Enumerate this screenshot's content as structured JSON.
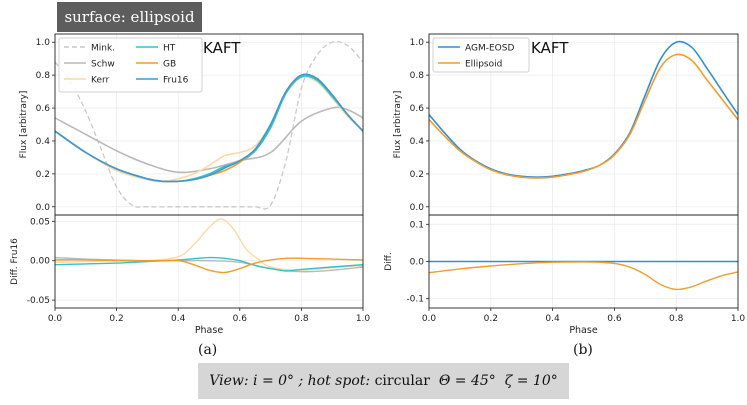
{
  "header": {
    "badge": "surface: ellipsoid"
  },
  "footer": {
    "view_label": "View:",
    "inclination": "i = 0°",
    "sep": ";",
    "hotspot_label": "hot spot:",
    "shape": "circular",
    "theta": "Θ = 45°",
    "zeta": "ζ = 10°"
  },
  "colors": {
    "mink": "#c8c8c8",
    "schw": "#b9b9b9",
    "kerr": "#fcd9a4",
    "ht": "#2ec4cf",
    "gb": "#f39c2c",
    "fru16": "#3a9ad9",
    "agm": "#2f8fd8",
    "ellipsoid": "#f39c2c"
  },
  "chart_data": [
    {
      "panel": "(a)",
      "type": "line",
      "annotation": "KAFT",
      "xlabel": "Phase",
      "xlim": [
        0,
        1
      ],
      "xticks": [
        "0.0",
        "0.2",
        "0.4",
        "0.6",
        "0.8",
        "1.0"
      ],
      "top": {
        "ylabel": "Flux [arbitrary]",
        "ylim": [
          -0.05,
          1.05
        ],
        "yticks": [
          "0.0",
          "0.2",
          "0.4",
          "0.6",
          "0.8",
          "1.0"
        ],
        "series": [
          {
            "name": "Mink.",
            "color_key": "mink",
            "dashed": true,
            "x": [
              0,
              0.05,
              0.1,
              0.15,
              0.2,
              0.25,
              0.3,
              0.4,
              0.5,
              0.6,
              0.65,
              0.7,
              0.75,
              0.8,
              0.85,
              0.9,
              0.95,
              1.0
            ],
            "y": [
              0.88,
              0.76,
              0.58,
              0.35,
              0.12,
              0.01,
              0,
              0,
              0,
              0,
              0,
              0.01,
              0.28,
              0.72,
              0.92,
              1.0,
              0.98,
              0.88
            ]
          },
          {
            "name": "Schw",
            "color_key": "schw",
            "dashed": false,
            "x": [
              0,
              0.1,
              0.2,
              0.3,
              0.4,
              0.5,
              0.6,
              0.7,
              0.8,
              0.9,
              0.95,
              1.0
            ],
            "y": [
              0.54,
              0.44,
              0.34,
              0.26,
              0.21,
              0.23,
              0.28,
              0.33,
              0.52,
              0.6,
              0.59,
              0.54
            ]
          },
          {
            "name": "Kerr",
            "color_key": "kerr",
            "dashed": false,
            "x": [
              0,
              0.1,
              0.2,
              0.3,
              0.35,
              0.4,
              0.45,
              0.5,
              0.55,
              0.6,
              0.65,
              0.7,
              0.75,
              0.8,
              0.85,
              0.9,
              0.95,
              1.0
            ],
            "y": [
              0.46,
              0.33,
              0.22,
              0.165,
              0.155,
              0.17,
              0.2,
              0.25,
              0.31,
              0.33,
              0.37,
              0.5,
              0.69,
              0.785,
              0.76,
              0.66,
              0.55,
              0.46
            ]
          },
          {
            "name": "HT",
            "color_key": "ht",
            "dashed": false,
            "x": [
              0,
              0.1,
              0.2,
              0.3,
              0.35,
              0.4,
              0.45,
              0.5,
              0.55,
              0.6,
              0.65,
              0.7,
              0.75,
              0.8,
              0.85,
              0.9,
              0.95,
              1.0
            ],
            "y": [
              0.46,
              0.33,
              0.23,
              0.17,
              0.155,
              0.155,
              0.17,
              0.2,
              0.245,
              0.275,
              0.34,
              0.48,
              0.69,
              0.79,
              0.77,
              0.67,
              0.56,
              0.46
            ]
          },
          {
            "name": "GB",
            "color_key": "gb",
            "dashed": false,
            "x": [
              0,
              0.1,
              0.2,
              0.3,
              0.35,
              0.4,
              0.45,
              0.5,
              0.55,
              0.6,
              0.65,
              0.7,
              0.75,
              0.8,
              0.85,
              0.9,
              0.95,
              1.0
            ],
            "y": [
              0.46,
              0.33,
              0.23,
              0.17,
              0.155,
              0.155,
              0.165,
              0.19,
              0.22,
              0.27,
              0.35,
              0.5,
              0.7,
              0.8,
              0.78,
              0.68,
              0.56,
              0.46
            ]
          },
          {
            "name": "Fru16",
            "color_key": "fru16",
            "dashed": false,
            "x": [
              0,
              0.1,
              0.2,
              0.3,
              0.35,
              0.4,
              0.45,
              0.5,
              0.55,
              0.6,
              0.65,
              0.7,
              0.75,
              0.8,
              0.85,
              0.9,
              0.95,
              1.0
            ],
            "y": [
              0.46,
              0.33,
              0.23,
              0.17,
              0.155,
              0.155,
              0.165,
              0.19,
              0.235,
              0.28,
              0.35,
              0.5,
              0.7,
              0.8,
              0.78,
              0.68,
              0.56,
              0.46
            ]
          }
        ]
      },
      "bottom": {
        "ylabel": "Diff. Fru16",
        "ylim": [
          -0.06,
          0.058
        ],
        "yticks": [
          "0.05",
          "0.00",
          "-0.05"
        ],
        "ytick_values": [
          0.05,
          0,
          -0.05
        ],
        "series": [
          {
            "name": "Schw",
            "color_key": "schw",
            "x": [
              0,
              0.1,
              0.2,
              0.3,
              0.4,
              0.5,
              0.6,
              0.7,
              0.8,
              0.9,
              1.0
            ],
            "y": [
              0.004,
              0.002,
              0.001,
              0,
              0,
              0,
              -0.002,
              -0.01,
              -0.014,
              -0.012,
              -0.008
            ]
          },
          {
            "name": "Kerr",
            "color_key": "kerr",
            "x": [
              0,
              0.1,
              0.2,
              0.3,
              0.4,
              0.45,
              0.5,
              0.54,
              0.58,
              0.62,
              0.66,
              0.7,
              0.8,
              0.9,
              1.0
            ],
            "y": [
              -0.002,
              -0.001,
              0,
              0,
              0.005,
              0.02,
              0.042,
              0.053,
              0.04,
              0.015,
              0.002,
              -0.008,
              -0.012,
              -0.009,
              -0.006
            ]
          },
          {
            "name": "HT",
            "color_key": "ht",
            "x": [
              0,
              0.1,
              0.2,
              0.3,
              0.4,
              0.5,
              0.55,
              0.6,
              0.65,
              0.7,
              0.75,
              0.8,
              0.9,
              1.0
            ],
            "y": [
              -0.005,
              -0.004,
              -0.003,
              -0.001,
              0.001,
              0.004,
              0.003,
              0,
              -0.006,
              -0.01,
              -0.013,
              -0.011,
              -0.008,
              -0.005
            ]
          },
          {
            "name": "GB",
            "color_key": "gb",
            "x": [
              0,
              0.1,
              0.2,
              0.3,
              0.4,
              0.45,
              0.5,
              0.55,
              0.6,
              0.65,
              0.7,
              0.75,
              0.8,
              0.9,
              1.0
            ],
            "y": [
              0.001,
              0.001,
              0,
              0,
              0,
              -0.005,
              -0.012,
              -0.015,
              -0.01,
              -0.003,
              0.001,
              0.003,
              0.003,
              0.002,
              0.001
            ]
          }
        ]
      },
      "legend": [
        "Mink.",
        "HT",
        "Schw",
        "GB",
        "Kerr",
        "Fru16"
      ]
    },
    {
      "panel": "(b)",
      "type": "line",
      "annotation": "KAFT",
      "xlabel": "Phase",
      "xlim": [
        0,
        1
      ],
      "xticks": [
        "0.0",
        "0.2",
        "0.4",
        "0.6",
        "0.8",
        "1.0"
      ],
      "top": {
        "ylabel": "Flux [arbitrary]",
        "ylim": [
          -0.05,
          1.05
        ],
        "yticks": [
          "0.0",
          "0.2",
          "0.4",
          "0.6",
          "0.8",
          "1.0"
        ],
        "series": [
          {
            "name": "AGM-EOSD",
            "color_key": "agm",
            "x": [
              0,
              0.05,
              0.1,
              0.15,
              0.2,
              0.25,
              0.3,
              0.35,
              0.4,
              0.45,
              0.5,
              0.55,
              0.6,
              0.65,
              0.7,
              0.75,
              0.8,
              0.85,
              0.9,
              0.95,
              1.0
            ],
            "y": [
              0.56,
              0.45,
              0.35,
              0.28,
              0.23,
              0.2,
              0.185,
              0.18,
              0.185,
              0.2,
              0.22,
              0.25,
              0.32,
              0.45,
              0.68,
              0.9,
              1.0,
              0.97,
              0.84,
              0.7,
              0.56
            ]
          },
          {
            "name": "Ellipsoid",
            "color_key": "ellipsoid",
            "x": [
              0,
              0.05,
              0.1,
              0.15,
              0.2,
              0.25,
              0.3,
              0.35,
              0.4,
              0.45,
              0.5,
              0.55,
              0.6,
              0.65,
              0.7,
              0.75,
              0.8,
              0.85,
              0.9,
              0.95,
              1.0
            ],
            "y": [
              0.53,
              0.43,
              0.34,
              0.275,
              0.225,
              0.195,
              0.18,
              0.175,
              0.18,
              0.195,
              0.215,
              0.25,
              0.315,
              0.44,
              0.65,
              0.85,
              0.925,
              0.89,
              0.77,
              0.65,
              0.53
            ]
          }
        ]
      },
      "bottom": {
        "ylabel": "Diff.",
        "ylim": [
          -0.125,
          0.125
        ],
        "yticks": [
          "0.1",
          "0.0",
          "-0.1"
        ],
        "ytick_values": [
          0.1,
          0,
          -0.1
        ],
        "series": [
          {
            "name": "AGM-EOSD",
            "color_key": "agm",
            "x": [
              0,
              1
            ],
            "y": [
              0,
              0
            ]
          },
          {
            "name": "Ellipsoid",
            "color_key": "ellipsoid",
            "x": [
              0,
              0.1,
              0.2,
              0.3,
              0.4,
              0.5,
              0.55,
              0.6,
              0.65,
              0.7,
              0.75,
              0.8,
              0.85,
              0.9,
              0.95,
              1.0
            ],
            "y": [
              -0.03,
              -0.02,
              -0.012,
              -0.006,
              -0.002,
              -0.001,
              -0.002,
              -0.005,
              -0.015,
              -0.035,
              -0.062,
              -0.075,
              -0.068,
              -0.052,
              -0.038,
              -0.028
            ]
          }
        ]
      },
      "legend": [
        "AGM-EOSD",
        "Ellipsoid"
      ]
    }
  ]
}
